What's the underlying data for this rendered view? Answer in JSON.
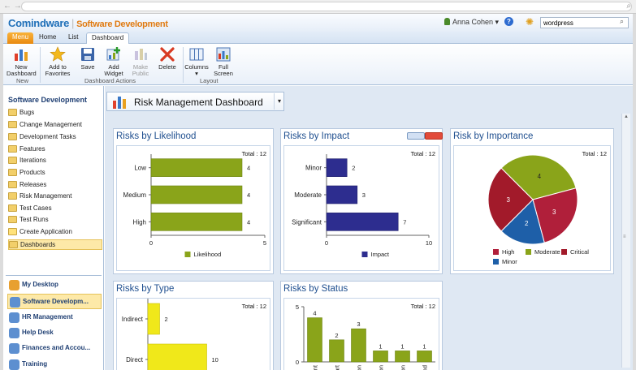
{
  "header": {
    "logo_brand": "Comindware",
    "logo_module": "Software Development",
    "user_name": "Anna Cohen",
    "search_value": "wordpress"
  },
  "tabs": [
    {
      "label": "Menu"
    },
    {
      "label": "Home"
    },
    {
      "label": "List"
    },
    {
      "label": "Dashboard"
    }
  ],
  "ribbon": {
    "buttons": [
      {
        "label1": "New",
        "label2": "Dashboard"
      },
      {
        "label1": "Add to",
        "label2": "Favorites"
      },
      {
        "label1": "Save",
        "label2": ""
      },
      {
        "label1": "Add",
        "label2": "Widget"
      },
      {
        "label1": "Make",
        "label2": "Public"
      },
      {
        "label1": "Delete",
        "label2": ""
      },
      {
        "label1": "Columns",
        "label2": "▾"
      },
      {
        "label1": "Full",
        "label2": "Screen"
      }
    ],
    "groups": [
      "New",
      "Dashboard Actions",
      "Layout"
    ]
  },
  "sidebar": {
    "title": "Software Development",
    "items": [
      {
        "label": "Bugs"
      },
      {
        "label": "Change Management"
      },
      {
        "label": "Development Tasks"
      },
      {
        "label": "Features"
      },
      {
        "label": "Iterations"
      },
      {
        "label": "Products"
      },
      {
        "label": "Releases"
      },
      {
        "label": "Risk Management"
      },
      {
        "label": "Test Cases"
      },
      {
        "label": "Test Runs"
      },
      {
        "label": "Create Application"
      },
      {
        "label": "Dashboards"
      }
    ],
    "desktops": [
      {
        "label": "My Desktop"
      },
      {
        "label": "Software Developm..."
      },
      {
        "label": "HR Management"
      },
      {
        "label": "Help Desk"
      },
      {
        "label": "Finances and Accou..."
      },
      {
        "label": "Training"
      }
    ]
  },
  "dashboard": {
    "title": "Risk Management Dashboard"
  },
  "widgets": {
    "likelihood": {
      "title": "Risks by Likelihood",
      "total": "Total : 12"
    },
    "impact": {
      "title": "Risks by Impact",
      "total": "Total : 12"
    },
    "importance": {
      "title": "Risk by Importance",
      "total": "Total : 12"
    },
    "type": {
      "title": "Risks by Type",
      "total": "Total : 12"
    },
    "status": {
      "title": "Risks by Status",
      "total": "Total : 12"
    }
  },
  "colors": {
    "green": "#8aa41a",
    "navy": "#2d2d8f",
    "yellow": "#f0e81a",
    "pie_high": "#b01f3a",
    "pie_moderate": "#8aa41a",
    "pie_critical": "#a21a2a",
    "pie_minor": "#1e5fa8"
  },
  "chart_data": [
    {
      "type": "bar",
      "orientation": "horizontal",
      "title": "Risks by Likelihood",
      "categories": [
        "Low",
        "Medium",
        "High"
      ],
      "series": [
        {
          "name": "Likelihood",
          "values": [
            4,
            4,
            4
          ]
        }
      ],
      "xlim": [
        0,
        5
      ],
      "xticks": [
        0,
        5
      ]
    },
    {
      "type": "bar",
      "orientation": "horizontal",
      "title": "Risks by Impact",
      "categories": [
        "Minor",
        "Moderate",
        "Significant"
      ],
      "series": [
        {
          "name": "Impact",
          "values": [
            2,
            3,
            7
          ]
        }
      ],
      "xlim": [
        0,
        10
      ],
      "xticks": [
        0,
        10
      ]
    },
    {
      "type": "pie",
      "title": "Risk by Importance",
      "slices": [
        {
          "name": "Moderate",
          "value": 4
        },
        {
          "name": "High",
          "value": 3
        },
        {
          "name": "Minor",
          "value": 2
        },
        {
          "name": "Critical",
          "value": 3
        }
      ],
      "legend": [
        "High",
        "Moderate",
        "Critical",
        "Minor"
      ]
    },
    {
      "type": "bar",
      "orientation": "horizontal",
      "title": "Risks by Type",
      "categories": [
        "Indirect",
        "Direct"
      ],
      "series": [
        {
          "name": "",
          "values": [
            2,
            10
          ]
        }
      ],
      "xlim": [
        0,
        12
      ]
    },
    {
      "type": "bar",
      "orientation": "vertical",
      "title": "Risks by Status",
      "categories": [
        "...sment",
        "Start",
        "...ention",
        "...olution",
        "...ission",
        "End"
      ],
      "series": [
        {
          "name": "",
          "values": [
            4,
            2,
            3,
            1,
            1,
            1
          ]
        }
      ],
      "ylim": [
        0,
        5
      ],
      "yticks": [
        0,
        5
      ]
    }
  ]
}
